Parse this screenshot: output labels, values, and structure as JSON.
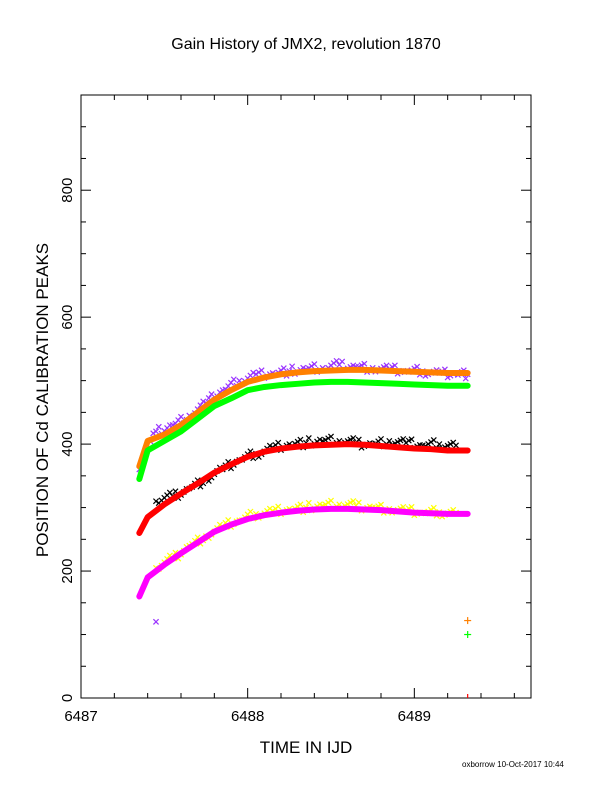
{
  "title": "Gain History of JMX2, revolution 1870",
  "footer": "oxborrow 10-Oct-2017 10:44",
  "chart_data": {
    "type": "scatter",
    "title": "Gain History of JMX2, revolution 1870",
    "xlabel": "TIME IN IJD",
    "ylabel": "POSITION OF Cd CALIBRATION PEAKS",
    "xlim": [
      6487.0,
      6489.7
    ],
    "ylim": [
      0,
      950
    ],
    "xticks": [
      6487,
      6488,
      6489
    ],
    "yticks": [
      0,
      200,
      400,
      600,
      800
    ],
    "grid": false,
    "series": [
      {
        "marker": "x",
        "color": "#9933ff",
        "x": [
          6487.35,
          6487.45,
          6487.55,
          6487.65,
          6487.75,
          6487.85,
          6487.95,
          6488.05,
          6488.15,
          6488.25,
          6488.35,
          6488.45,
          6488.55,
          6488.65,
          6488.75,
          6488.85,
          6488.95,
          6489.05,
          6489.15,
          6489.25,
          6489.32
        ],
        "y": [
          360,
          420,
          430,
          445,
          465,
          485,
          500,
          510,
          512,
          515,
          518,
          520,
          525,
          522,
          520,
          518,
          515,
          515,
          512,
          512,
          510
        ]
      },
      {
        "marker": "line",
        "color": "#ff8000",
        "x": [
          6487.35,
          6487.4,
          6487.5,
          6487.6,
          6487.7,
          6487.8,
          6487.9,
          6488.0,
          6488.1,
          6488.2,
          6488.3,
          6488.4,
          6488.5,
          6488.6,
          6488.7,
          6488.8,
          6488.9,
          6489.0,
          6489.1,
          6489.2,
          6489.32
        ],
        "y": [
          365,
          405,
          415,
          430,
          450,
          470,
          485,
          498,
          505,
          510,
          513,
          515,
          516,
          517,
          517,
          516,
          515,
          514,
          513,
          512,
          512
        ]
      },
      {
        "marker": "line",
        "color": "#00ff00",
        "x": [
          6487.35,
          6487.4,
          6487.5,
          6487.6,
          6487.7,
          6487.8,
          6487.9,
          6488.0,
          6488.1,
          6488.2,
          6488.3,
          6488.4,
          6488.5,
          6488.6,
          6488.7,
          6488.8,
          6488.9,
          6489.0,
          6489.1,
          6489.2,
          6489.32
        ],
        "y": [
          345,
          390,
          405,
          420,
          440,
          460,
          472,
          485,
          490,
          493,
          495,
          497,
          498,
          498,
          497,
          496,
          495,
          494,
          493,
          492,
          492
        ]
      },
      {
        "marker": "x",
        "color": "#000000",
        "x": [
          6487.45,
          6487.55,
          6487.65,
          6487.75,
          6487.85,
          6487.95,
          6488.05,
          6488.15,
          6488.25,
          6488.35,
          6488.45,
          6488.55,
          6488.65,
          6488.75,
          6488.85,
          6488.95,
          6489.05,
          6489.15,
          6489.25
        ],
        "y": [
          310,
          318,
          330,
          345,
          360,
          375,
          385,
          395,
          400,
          402,
          405,
          405,
          402,
          400,
          405,
          402,
          398,
          400,
          398
        ]
      },
      {
        "marker": "line",
        "color": "#ff0000",
        "x": [
          6487.35,
          6487.4,
          6487.5,
          6487.6,
          6487.7,
          6487.8,
          6487.9,
          6488.0,
          6488.1,
          6488.2,
          6488.3,
          6488.4,
          6488.5,
          6488.6,
          6488.7,
          6488.8,
          6488.9,
          6489.0,
          6489.1,
          6489.2,
          6489.32
        ],
        "y": [
          260,
          285,
          305,
          322,
          338,
          355,
          368,
          380,
          388,
          393,
          396,
          398,
          399,
          400,
          399,
          397,
          395,
          393,
          392,
          390,
          390
        ]
      },
      {
        "marker": "x",
        "color": "#ffff00",
        "x": [
          6487.45,
          6487.55,
          6487.65,
          6487.75,
          6487.85,
          6487.95,
          6488.05,
          6488.15,
          6488.25,
          6488.35,
          6488.45,
          6488.55,
          6488.65,
          6488.75,
          6488.85,
          6488.95,
          6489.05,
          6489.15,
          6489.25
        ],
        "y": [
          205,
          220,
          240,
          255,
          270,
          280,
          290,
          295,
          298,
          300,
          303,
          305,
          303,
          300,
          298,
          295,
          292,
          293,
          292
        ]
      },
      {
        "marker": "line",
        "color": "#ff00ff",
        "x": [
          6487.35,
          6487.4,
          6487.5,
          6487.6,
          6487.7,
          6487.8,
          6487.9,
          6488.0,
          6488.1,
          6488.2,
          6488.3,
          6488.4,
          6488.5,
          6488.6,
          6488.7,
          6488.8,
          6488.9,
          6489.0,
          6489.1,
          6489.2,
          6489.32
        ],
        "y": [
          160,
          190,
          210,
          228,
          245,
          262,
          273,
          282,
          288,
          292,
          295,
          297,
          298,
          298,
          297,
          296,
          294,
          292,
          291,
          290,
          290
        ]
      }
    ],
    "outliers": [
      {
        "marker": "x",
        "color": "#9933ff",
        "x": 6487.45,
        "y": 120
      },
      {
        "marker": "+",
        "color": "#ff8000",
        "x": 6489.32,
        "y": 122
      },
      {
        "marker": "+",
        "color": "#00ff00",
        "x": 6489.32,
        "y": 100
      },
      {
        "marker": "|",
        "color": "#ff0000",
        "x": 6489.32,
        "y": 0
      }
    ]
  }
}
